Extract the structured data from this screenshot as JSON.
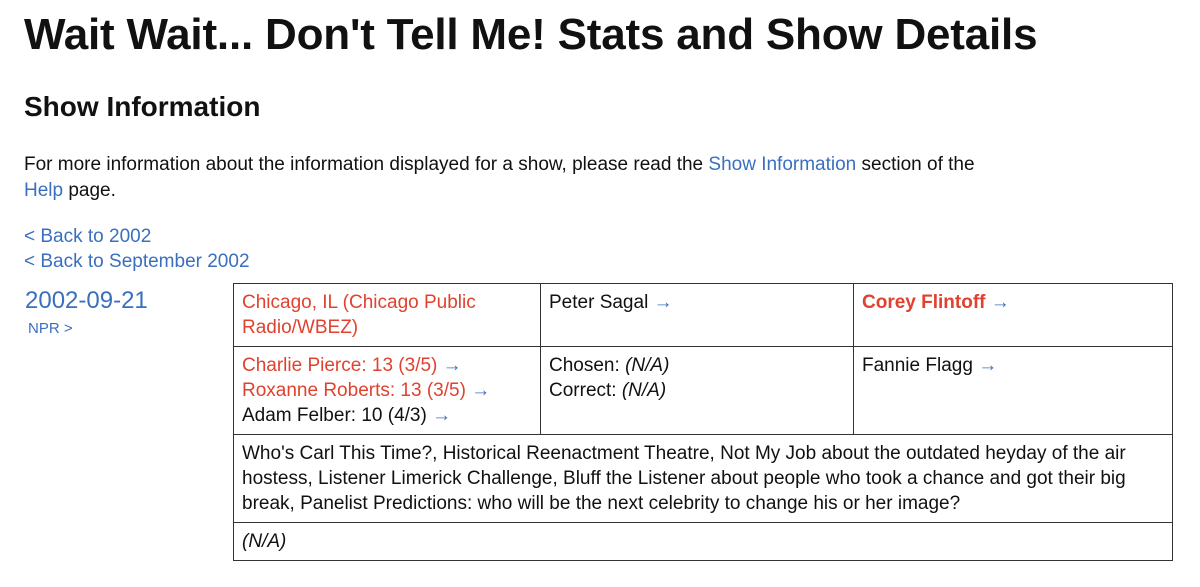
{
  "page": {
    "title": "Wait Wait... Don't Tell Me! Stats and Show Details",
    "section_title": "Show Information",
    "intro": {
      "text_before": "For more information about the information displayed for a show, please read the",
      "link1": "Show Information",
      "text_middle": "section of the",
      "link2": "Help",
      "text_after": "page."
    },
    "back_links": [
      "< Back to 2002",
      "< Back to September 2002"
    ]
  },
  "show": {
    "date": "2002-09-21",
    "npr_link": "NPR >",
    "location": "Chicago, IL (Chicago Public Radio/WBEZ)",
    "host": "Peter Sagal",
    "scorekeeper": "Corey Flintoff",
    "arrow": "→",
    "panelists": [
      {
        "text": "Charlie Pierce: 13 (3/5)",
        "highlight": true
      },
      {
        "text": "Roxanne Roberts: 13 (3/5)",
        "highlight": true
      },
      {
        "text": "Adam Felber: 10 (4/3)",
        "highlight": false
      }
    ],
    "bluff": {
      "chosen_label": "Chosen:",
      "chosen_value": "(N/A)",
      "correct_label": "Correct:",
      "correct_value": "(N/A)"
    },
    "guest": "Fannie Flagg",
    "description": "Who's Carl This Time?, Historical Reenactment Theatre, Not My Job about the outdated heyday of the air hostess, Listener Limerick Challenge, Bluff the Listener about people who took a chance and got their big break, Panelist Predictions: who will be the next celebrity to change his or her image?",
    "notes": "(N/A)"
  },
  "colors": {
    "link": "#3a6fc0",
    "highlight": "#e1412f",
    "text": "#111111"
  }
}
